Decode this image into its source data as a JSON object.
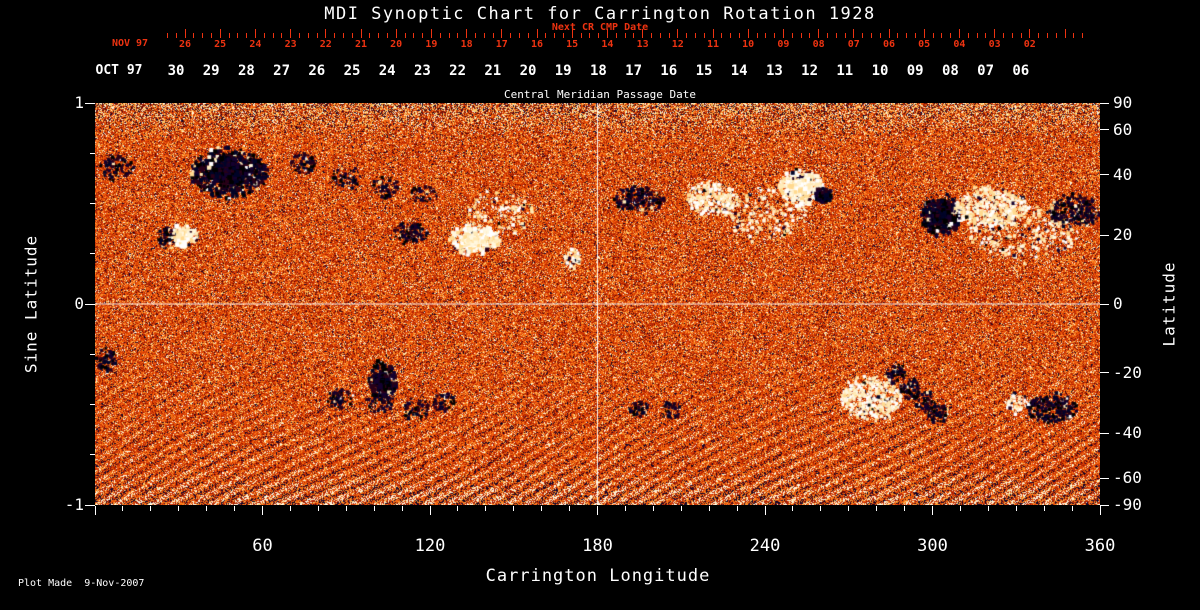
{
  "title": "MDI Synoptic Chart for Carrington Rotation 1928",
  "footer": "Plot Made  9-Nov-2007",
  "colors": {
    "background": "#000000",
    "text": "#ffffff",
    "red_axis": "#ee3311",
    "grid_line": "#ffffff"
  },
  "top_axis_red": {
    "label": "Next CR CMP Date",
    "month": "NOV 97",
    "dates": [
      "26",
      "25",
      "24",
      "23",
      "22",
      "21",
      "20",
      "19",
      "18",
      "17",
      "16",
      "15",
      "14",
      "13",
      "12",
      "11",
      "10",
      "09",
      "08",
      "07",
      "06",
      "05",
      "04",
      "03",
      "02"
    ]
  },
  "top_axis_white": {
    "label": "Central Meridian Passage Date",
    "month": "OCT 97",
    "dates": [
      "30",
      "29",
      "28",
      "27",
      "26",
      "25",
      "24",
      "23",
      "22",
      "21",
      "20",
      "19",
      "18",
      "17",
      "16",
      "15",
      "14",
      "13",
      "12",
      "11",
      "10",
      "09",
      "08",
      "07",
      "06"
    ]
  },
  "left_axis": {
    "label": "Sine Latitude",
    "ticks": [
      {
        "value": 1,
        "text": "1"
      },
      {
        "value": 0,
        "text": "0"
      },
      {
        "value": -1,
        "text": "-1"
      }
    ]
  },
  "right_axis": {
    "label": "Latitude",
    "ticks": [
      {
        "value": 90,
        "text": "90"
      },
      {
        "value": 60,
        "text": "60"
      },
      {
        "value": 40,
        "text": "40"
      },
      {
        "value": 20,
        "text": "20"
      },
      {
        "value": 0,
        "text": "0"
      },
      {
        "value": -20,
        "text": "-20"
      },
      {
        "value": -40,
        "text": "-40"
      },
      {
        "value": -60,
        "text": "-60"
      },
      {
        "value": -90,
        "text": "-90"
      }
    ]
  },
  "bottom_axis": {
    "label": "Carrington Longitude",
    "ticks": [
      {
        "value": 60,
        "text": "60"
      },
      {
        "value": 120,
        "text": "120"
      },
      {
        "value": 180,
        "text": "180"
      },
      {
        "value": 240,
        "text": "240"
      },
      {
        "value": 300,
        "text": "300"
      },
      {
        "value": 360,
        "text": "360"
      }
    ]
  },
  "chart_data": {
    "type": "heatmap",
    "title": "MDI Synoptic Chart for Carrington Rotation 1928",
    "carrington_rotation": 1928,
    "xlabel": "Carrington Longitude",
    "x_range": [
      0,
      360
    ],
    "ylabel": "Sine Latitude",
    "y_range": [
      -1,
      1
    ],
    "secondary_ylabel": "Latitude",
    "secondary_y_ticks": [
      90,
      60,
      40,
      20,
      0,
      -20,
      -40,
      -60,
      -90
    ],
    "top_axis_primary": "Central Meridian Passage Date (OCT 97: 30 down to 06, right to left increasing longitude)",
    "top_axis_secondary": "Next CR CMP Date (NOV 97: 26 down to 02)",
    "colormap_description": "speckled orange-red solar magnetogram; dark navy/black = negative magnetic polarity, white/yellow = positive polarity",
    "colormap": [
      "#0c022e",
      "#5f0a06",
      "#a81e02",
      "#d43a02",
      "#f35c0a",
      "#fc8a26",
      "#ffc669",
      "#fff6de"
    ],
    "polarity_colors": {
      "negative": [
        "#000428",
        "#14002e",
        "#000000",
        "#2a0018"
      ],
      "positive": [
        "#ffffff",
        "#fff7de",
        "#ffeab8",
        "#ffd98f"
      ]
    },
    "grid": {
      "horizontal_line_at_sine_latitude": 0,
      "vertical_line_at_longitude": 180
    },
    "active_regions": [
      {
        "lon": 48,
        "sine_lat": 0.65,
        "half_width_lon": 14,
        "half_width_slat": 0.11,
        "polarity": "negative",
        "strength": 0.9
      },
      {
        "lon": 8,
        "sine_lat": 0.68,
        "half_width_lon": 6,
        "half_width_slat": 0.06,
        "polarity": "negative",
        "strength": 0.5
      },
      {
        "lon": 26,
        "sine_lat": 0.33,
        "half_width_lon": 4,
        "half_width_slat": 0.05,
        "polarity": "negative",
        "strength": 0.85
      },
      {
        "lon": 32,
        "sine_lat": 0.34,
        "half_width_lon": 5,
        "half_width_slat": 0.05,
        "polarity": "positive",
        "strength": 0.95
      },
      {
        "lon": 75,
        "sine_lat": 0.7,
        "half_width_lon": 5,
        "half_width_slat": 0.05,
        "polarity": "negative",
        "strength": 0.5
      },
      {
        "lon": 90,
        "sine_lat": 0.63,
        "half_width_lon": 5,
        "half_width_slat": 0.05,
        "polarity": "negative",
        "strength": 0.5
      },
      {
        "lon": 104,
        "sine_lat": 0.58,
        "half_width_lon": 5,
        "half_width_slat": 0.05,
        "polarity": "negative",
        "strength": 0.5
      },
      {
        "lon": 118,
        "sine_lat": 0.55,
        "half_width_lon": 5,
        "half_width_slat": 0.04,
        "polarity": "negative",
        "strength": 0.5
      },
      {
        "lon": 113,
        "sine_lat": 0.35,
        "half_width_lon": 6,
        "half_width_slat": 0.05,
        "polarity": "negative",
        "strength": 0.85
      },
      {
        "lon": 136,
        "sine_lat": 0.32,
        "half_width_lon": 9,
        "half_width_slat": 0.07,
        "polarity": "positive",
        "strength": 0.9
      },
      {
        "lon": 145,
        "sine_lat": 0.45,
        "half_width_lon": 12,
        "half_width_slat": 0.1,
        "polarity": "positive",
        "strength": 0.25
      },
      {
        "lon": 171,
        "sine_lat": 0.23,
        "half_width_lon": 3,
        "half_width_slat": 0.05,
        "polarity": "positive",
        "strength": 0.85
      },
      {
        "lon": 195,
        "sine_lat": 0.52,
        "half_width_lon": 9,
        "half_width_slat": 0.06,
        "polarity": "negative",
        "strength": 0.8
      },
      {
        "lon": 221,
        "sine_lat": 0.53,
        "half_width_lon": 9,
        "half_width_slat": 0.08,
        "polarity": "positive",
        "strength": 0.85
      },
      {
        "lon": 240,
        "sine_lat": 0.45,
        "half_width_lon": 15,
        "half_width_slat": 0.12,
        "polarity": "positive",
        "strength": 0.25
      },
      {
        "lon": 253,
        "sine_lat": 0.58,
        "half_width_lon": 8,
        "half_width_slat": 0.08,
        "polarity": "positive",
        "strength": 1.0
      },
      {
        "lon": 261,
        "sine_lat": 0.54,
        "half_width_lon": 3,
        "half_width_slat": 0.04,
        "polarity": "negative",
        "strength": 1.0
      },
      {
        "lon": 303,
        "sine_lat": 0.44,
        "half_width_lon": 7,
        "half_width_slat": 0.09,
        "polarity": "negative",
        "strength": 1.0
      },
      {
        "lon": 321,
        "sine_lat": 0.48,
        "half_width_lon": 13,
        "half_width_slat": 0.1,
        "polarity": "positive",
        "strength": 0.85
      },
      {
        "lon": 333,
        "sine_lat": 0.35,
        "half_width_lon": 20,
        "half_width_slat": 0.14,
        "polarity": "positive",
        "strength": 0.25
      },
      {
        "lon": 351,
        "sine_lat": 0.46,
        "half_width_lon": 9,
        "half_width_slat": 0.08,
        "polarity": "negative",
        "strength": 0.85
      },
      {
        "lon": 4,
        "sine_lat": -0.28,
        "half_width_lon": 4,
        "half_width_slat": 0.06,
        "polarity": "negative",
        "strength": 0.7
      },
      {
        "lon": 103,
        "sine_lat": -0.39,
        "half_width_lon": 5,
        "half_width_slat": 0.09,
        "polarity": "negative",
        "strength": 1.0
      },
      {
        "lon": 88,
        "sine_lat": -0.47,
        "half_width_lon": 5,
        "half_width_slat": 0.05,
        "polarity": "negative",
        "strength": 0.6
      },
      {
        "lon": 102,
        "sine_lat": -0.49,
        "half_width_lon": 5,
        "half_width_slat": 0.05,
        "polarity": "negative",
        "strength": 0.55
      },
      {
        "lon": 115,
        "sine_lat": -0.52,
        "half_width_lon": 5,
        "half_width_slat": 0.05,
        "polarity": "negative",
        "strength": 0.55
      },
      {
        "lon": 125,
        "sine_lat": -0.49,
        "half_width_lon": 4,
        "half_width_slat": 0.05,
        "polarity": "negative",
        "strength": 0.5
      },
      {
        "lon": 195,
        "sine_lat": -0.52,
        "half_width_lon": 4,
        "half_width_slat": 0.04,
        "polarity": "negative",
        "strength": 0.6
      },
      {
        "lon": 206,
        "sine_lat": -0.53,
        "half_width_lon": 4,
        "half_width_slat": 0.04,
        "polarity": "negative",
        "strength": 0.55
      },
      {
        "lon": 278,
        "sine_lat": -0.47,
        "half_width_lon": 11,
        "half_width_slat": 0.1,
        "polarity": "positive",
        "strength": 0.85
      },
      {
        "lon": 287,
        "sine_lat": -0.35,
        "half_width_lon": 3.5,
        "half_width_slat": 0.05,
        "polarity": "negative",
        "strength": 0.8
      },
      {
        "lon": 292,
        "sine_lat": -0.42,
        "half_width_lon": 3.5,
        "half_width_slat": 0.05,
        "polarity": "negative",
        "strength": 0.8
      },
      {
        "lon": 297,
        "sine_lat": -0.48,
        "half_width_lon": 3.5,
        "half_width_slat": 0.05,
        "polarity": "negative",
        "strength": 0.8
      },
      {
        "lon": 302,
        "sine_lat": -0.54,
        "half_width_lon": 3.5,
        "half_width_slat": 0.05,
        "polarity": "negative",
        "strength": 0.8
      },
      {
        "lon": 330,
        "sine_lat": -0.49,
        "half_width_lon": 4,
        "half_width_slat": 0.05,
        "polarity": "positive",
        "strength": 0.6
      },
      {
        "lon": 343,
        "sine_lat": -0.52,
        "half_width_lon": 9,
        "half_width_slat": 0.07,
        "polarity": "negative",
        "strength": 0.85
      }
    ]
  }
}
